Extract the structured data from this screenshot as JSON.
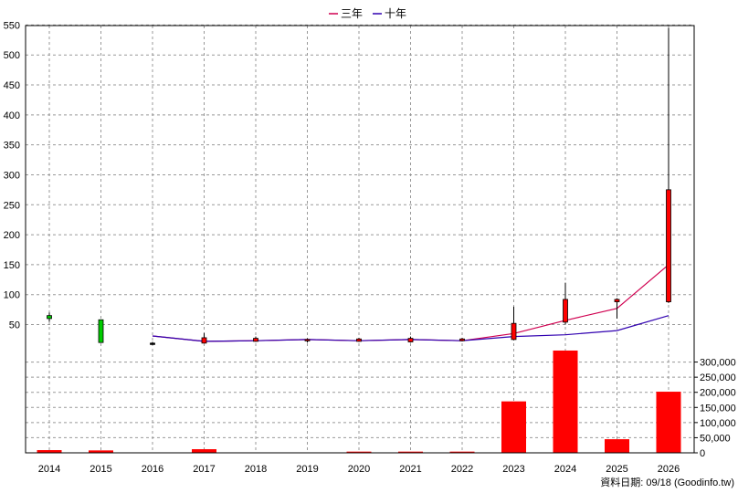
{
  "chart_data": {
    "type": "candlestick+line+bar",
    "categories": [
      "2014",
      "2015",
      "2016",
      "2017",
      "2018",
      "2019",
      "2020",
      "2021",
      "2022",
      "2023",
      "2024",
      "2025",
      "2026"
    ],
    "price_axis": {
      "ylim": [
        0,
        550
      ],
      "ticks": [
        50,
        100,
        150,
        200,
        250,
        300,
        350,
        400,
        450,
        500,
        550
      ]
    },
    "volume_axis": {
      "ylim": [
        0,
        350000
      ],
      "ticks": [
        0,
        50000,
        100000,
        150000,
        200000,
        250000,
        300000
      ],
      "tick_labels": [
        "0",
        "50,000",
        "100,000",
        "150,000",
        "200,000",
        "250,000",
        "300,000"
      ]
    },
    "candles": [
      {
        "x": "2014",
        "open": 60,
        "close": 65,
        "high": 70,
        "low": 55,
        "color": "#00cc00"
      },
      {
        "x": "2015",
        "open": 20,
        "close": 58,
        "high": 58,
        "low": 20,
        "color": "#00cc00"
      },
      {
        "x": "2016",
        "open": 19,
        "close": 18,
        "high": 21,
        "low": 16,
        "color": "#000000"
      },
      {
        "x": "2017",
        "open": 19,
        "close": 28,
        "high": 36,
        "low": 19,
        "color": "#ff0000"
      },
      {
        "x": "2018",
        "open": 22,
        "close": 27,
        "high": 30,
        "low": 21,
        "color": "#ff0000"
      },
      {
        "x": "2019",
        "open": 23,
        "close": 25,
        "high": 27,
        "low": 20,
        "color": "#ff0000"
      },
      {
        "x": "2020",
        "open": 22,
        "close": 26,
        "high": 28,
        "low": 21,
        "color": "#ff0000"
      },
      {
        "x": "2021",
        "open": 21,
        "close": 27,
        "high": 30,
        "low": 20,
        "color": "#ff0000"
      },
      {
        "x": "2022",
        "open": 23,
        "close": 26,
        "high": 28,
        "low": 22,
        "color": "#ff0000"
      },
      {
        "x": "2023",
        "open": 25,
        "close": 52,
        "high": 80,
        "low": 24,
        "color": "#ff0000"
      },
      {
        "x": "2024",
        "open": 54,
        "close": 92,
        "high": 120,
        "low": 50,
        "color": "#ff0000"
      },
      {
        "x": "2025",
        "open": 88,
        "close": 92,
        "high": 94,
        "low": 60,
        "color": "#ff0000"
      },
      {
        "x": "2026",
        "open": 88,
        "close": 275,
        "high": 545,
        "low": 86,
        "color": "#ff0000"
      }
    ],
    "series": [
      {
        "name": "三年",
        "color": "#d00050",
        "x": [
          "2016",
          "2017",
          "2018",
          "2019",
          "2020",
          "2021",
          "2022",
          "2023",
          "2024",
          "2025",
          "2026"
        ],
        "values": [
          31,
          22,
          23,
          25,
          23,
          25,
          23,
          35,
          57,
          77,
          150
        ]
      },
      {
        "name": "十年",
        "color": "#3000b0",
        "x": [
          "2016",
          "2017",
          "2018",
          "2019",
          "2020",
          "2021",
          "2022",
          "2023",
          "2024",
          "2025",
          "2026"
        ],
        "values": [
          31,
          22,
          23,
          25,
          23,
          25,
          23,
          30,
          33,
          40,
          65
        ]
      }
    ],
    "volume": {
      "color": "#ff0000",
      "x": [
        "2014",
        "2015",
        "2016",
        "2017",
        "2018",
        "2019",
        "2020",
        "2021",
        "2022",
        "2023",
        "2024",
        "2025",
        "2026"
      ],
      "values": [
        9000,
        8000,
        1000,
        12000,
        1000,
        1000,
        4000,
        4000,
        4000,
        170000,
        338000,
        45000,
        202000
      ]
    },
    "legend_position": "top-center",
    "grid": true
  },
  "source_label": "資料日期: 09/18  (Goodinfo.tw)"
}
